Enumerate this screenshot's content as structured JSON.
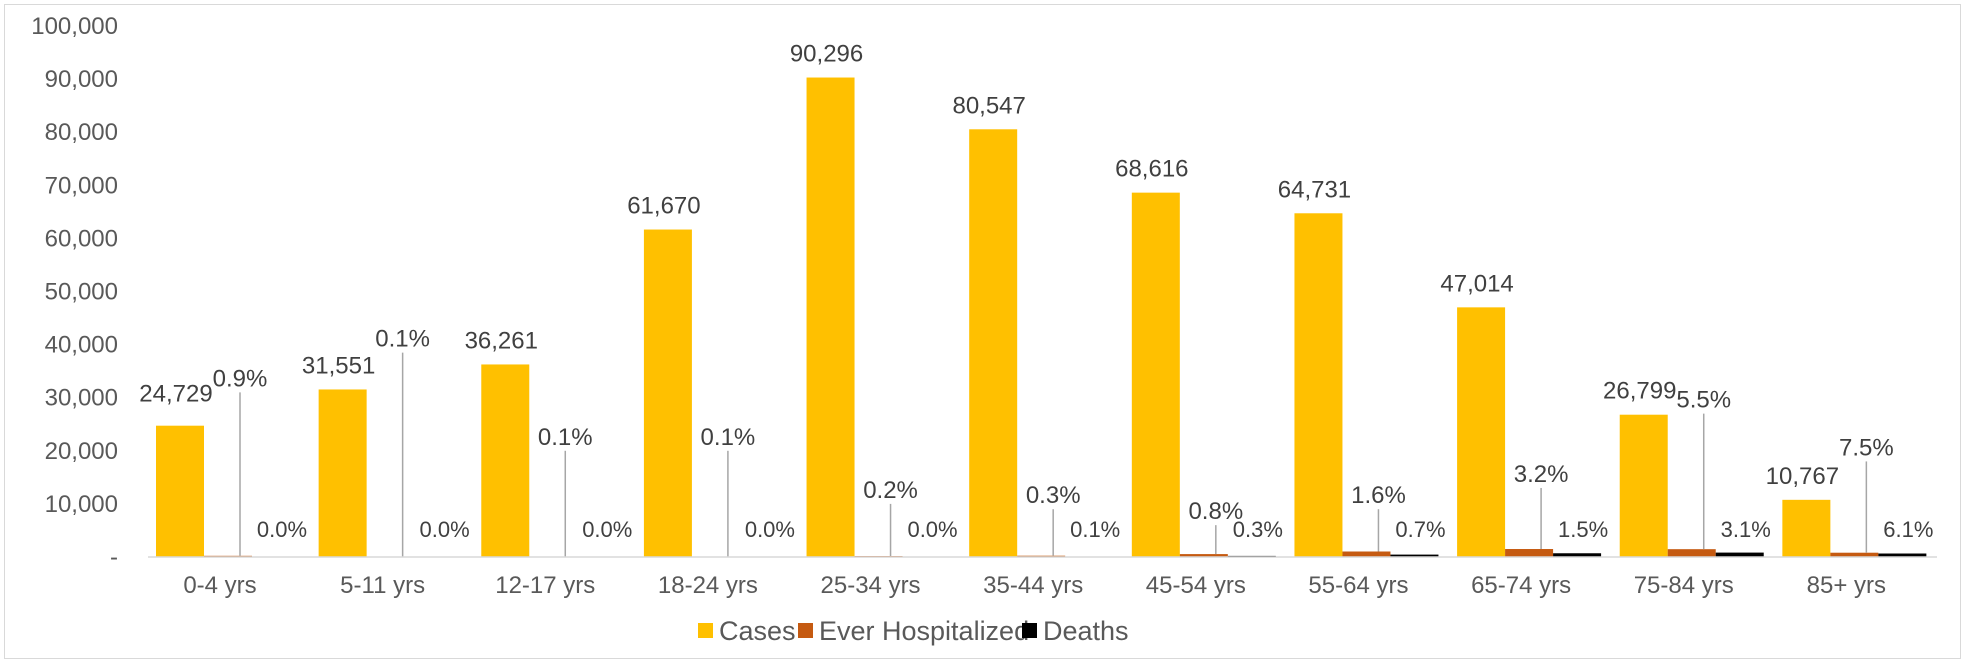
{
  "chart_data": {
    "type": "bar",
    "categories": [
      "0-4 yrs",
      "5-11 yrs",
      "12-17 yrs",
      "18-24 yrs",
      "25-34 yrs",
      "35-44 yrs",
      "45-54 yrs",
      "55-64 yrs",
      "65-74 yrs",
      "75-84 yrs",
      "85+ yrs"
    ],
    "series": [
      {
        "name": "Cases",
        "color": "#FFC000",
        "values": [
          24729,
          31551,
          36261,
          61670,
          90296,
          80547,
          68616,
          64731,
          47014,
          26799,
          10767
        ],
        "labels": [
          "24,729",
          "31,551",
          "36,261",
          "61,670",
          "90,296",
          "80,547",
          "68,616",
          "64,731",
          "47,014",
          "26,799",
          "10,767"
        ]
      },
      {
        "name": "Ever Hospitalized",
        "color": "#C55A11",
        "values": [
          223,
          32,
          36,
          62,
          181,
          242,
          549,
          1036,
          1504,
          1474,
          808
        ],
        "labels": [
          "0.9%",
          "0.1%",
          "0.1%",
          "0.1%",
          "0.2%",
          "0.3%",
          "0.8%",
          "1.6%",
          "3.2%",
          "5.5%",
          "7.5%"
        ]
      },
      {
        "name": "Deaths",
        "color": "#000000",
        "values": [
          0,
          0,
          0,
          0,
          0,
          81,
          206,
          453,
          705,
          831,
          657
        ],
        "labels": [
          "0.0%",
          "0.0%",
          "0.0%",
          "0.0%",
          "0.0%",
          "0.1%",
          "0.3%",
          "0.7%",
          "1.5%",
          "3.1%",
          "6.1%"
        ]
      }
    ],
    "y_ticks": [
      "-",
      "10,000",
      "20,000",
      "30,000",
      "40,000",
      "50,000",
      "60,000",
      "70,000",
      "80,000",
      "90,000",
      "100,000"
    ],
    "ylim": [
      0,
      100000
    ],
    "legend_position": "bottom",
    "grid": false
  }
}
